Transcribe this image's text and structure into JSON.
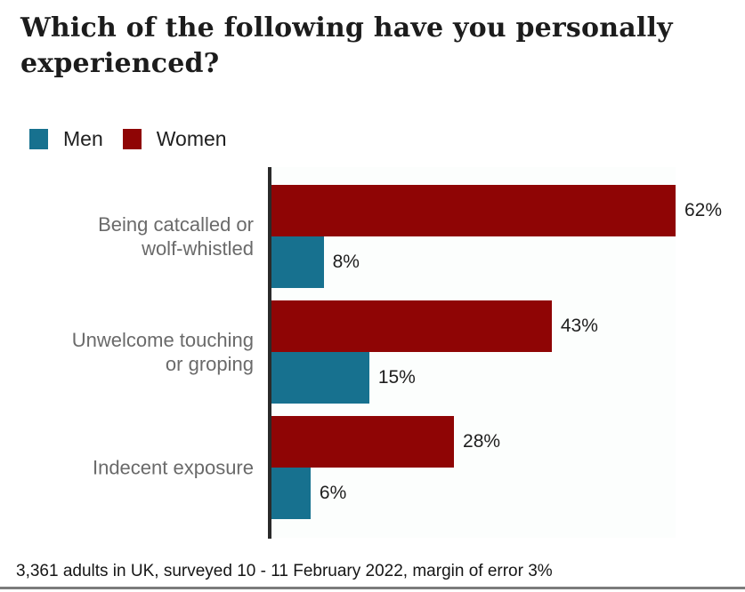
{
  "title": "Which of the following have you personally experienced?",
  "legend": {
    "items": [
      {
        "label": "Men",
        "color": "#17718F"
      },
      {
        "label": "Women",
        "color": "#8F0505"
      }
    ]
  },
  "footer": {
    "note": "3,361 adults in UK, surveyed 10 - 11 February 2022, margin of error 3%"
  },
  "chart_data": {
    "type": "bar",
    "orientation": "horizontal",
    "title": "Which of the following have you personally experienced?",
    "categories": [
      "Being catcalled or\nwolf-whistled",
      "Unwelcome touching\nor groping",
      "Indecent exposure"
    ],
    "series": [
      {
        "name": "Women",
        "color": "#8F0505",
        "values": [
          62,
          43,
          28
        ]
      },
      {
        "name": "Men",
        "color": "#17718F",
        "values": [
          8,
          15,
          6
        ]
      }
    ],
    "value_suffix": "%",
    "xlim": [
      0,
      62
    ],
    "grid": false,
    "legend_position": "top-left",
    "axis_color": "#2a2a2a",
    "category_label_color": "#6a6a6a",
    "source_note": "3,361 adults in UK, surveyed 10 - 11 February 2022, margin of error 3%"
  }
}
